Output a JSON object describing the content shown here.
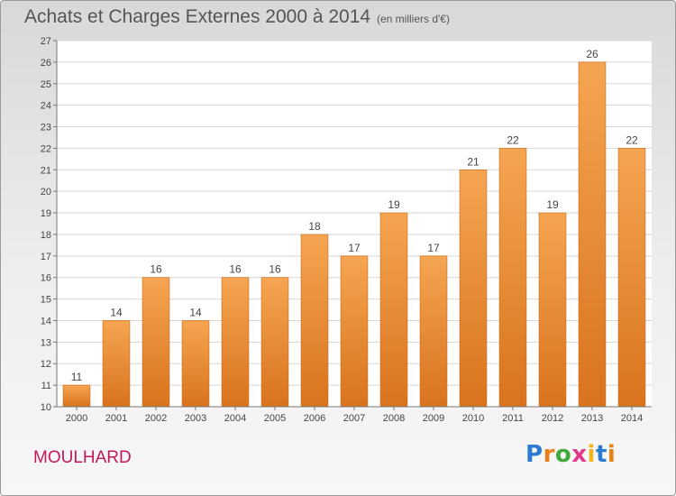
{
  "header": {
    "title": "Achats et Charges Externes 2000 à 2014",
    "unit": "(en milliers d'€)"
  },
  "footer": {
    "city": "MOULHARD",
    "logo_letters": [
      "P",
      "r",
      "o",
      "x",
      "i",
      "t",
      "i"
    ]
  },
  "colors": {
    "bar_top": "#f5a552",
    "bar_bottom": "#d9731d",
    "bar_edge": "#c86712",
    "city": "#c2185b",
    "grid": "#d7d7d7"
  },
  "chart_data": {
    "type": "bar",
    "categories": [
      "2000",
      "2001",
      "2002",
      "2003",
      "2004",
      "2005",
      "2006",
      "2007",
      "2008",
      "2009",
      "2010",
      "2011",
      "2012",
      "2013",
      "2014"
    ],
    "values": [
      11,
      14,
      16,
      14,
      16,
      16,
      18,
      17,
      19,
      17,
      21,
      22,
      19,
      26,
      22
    ],
    "title": "Achats et Charges Externes 2000 à 2014",
    "xlabel": "",
    "ylabel": "",
    "ylim": [
      10,
      27
    ],
    "yticks": [
      10,
      11,
      12,
      13,
      14,
      15,
      16,
      17,
      18,
      19,
      20,
      21,
      22,
      23,
      24,
      25,
      26,
      27
    ],
    "grid": true,
    "data_labels": true
  }
}
